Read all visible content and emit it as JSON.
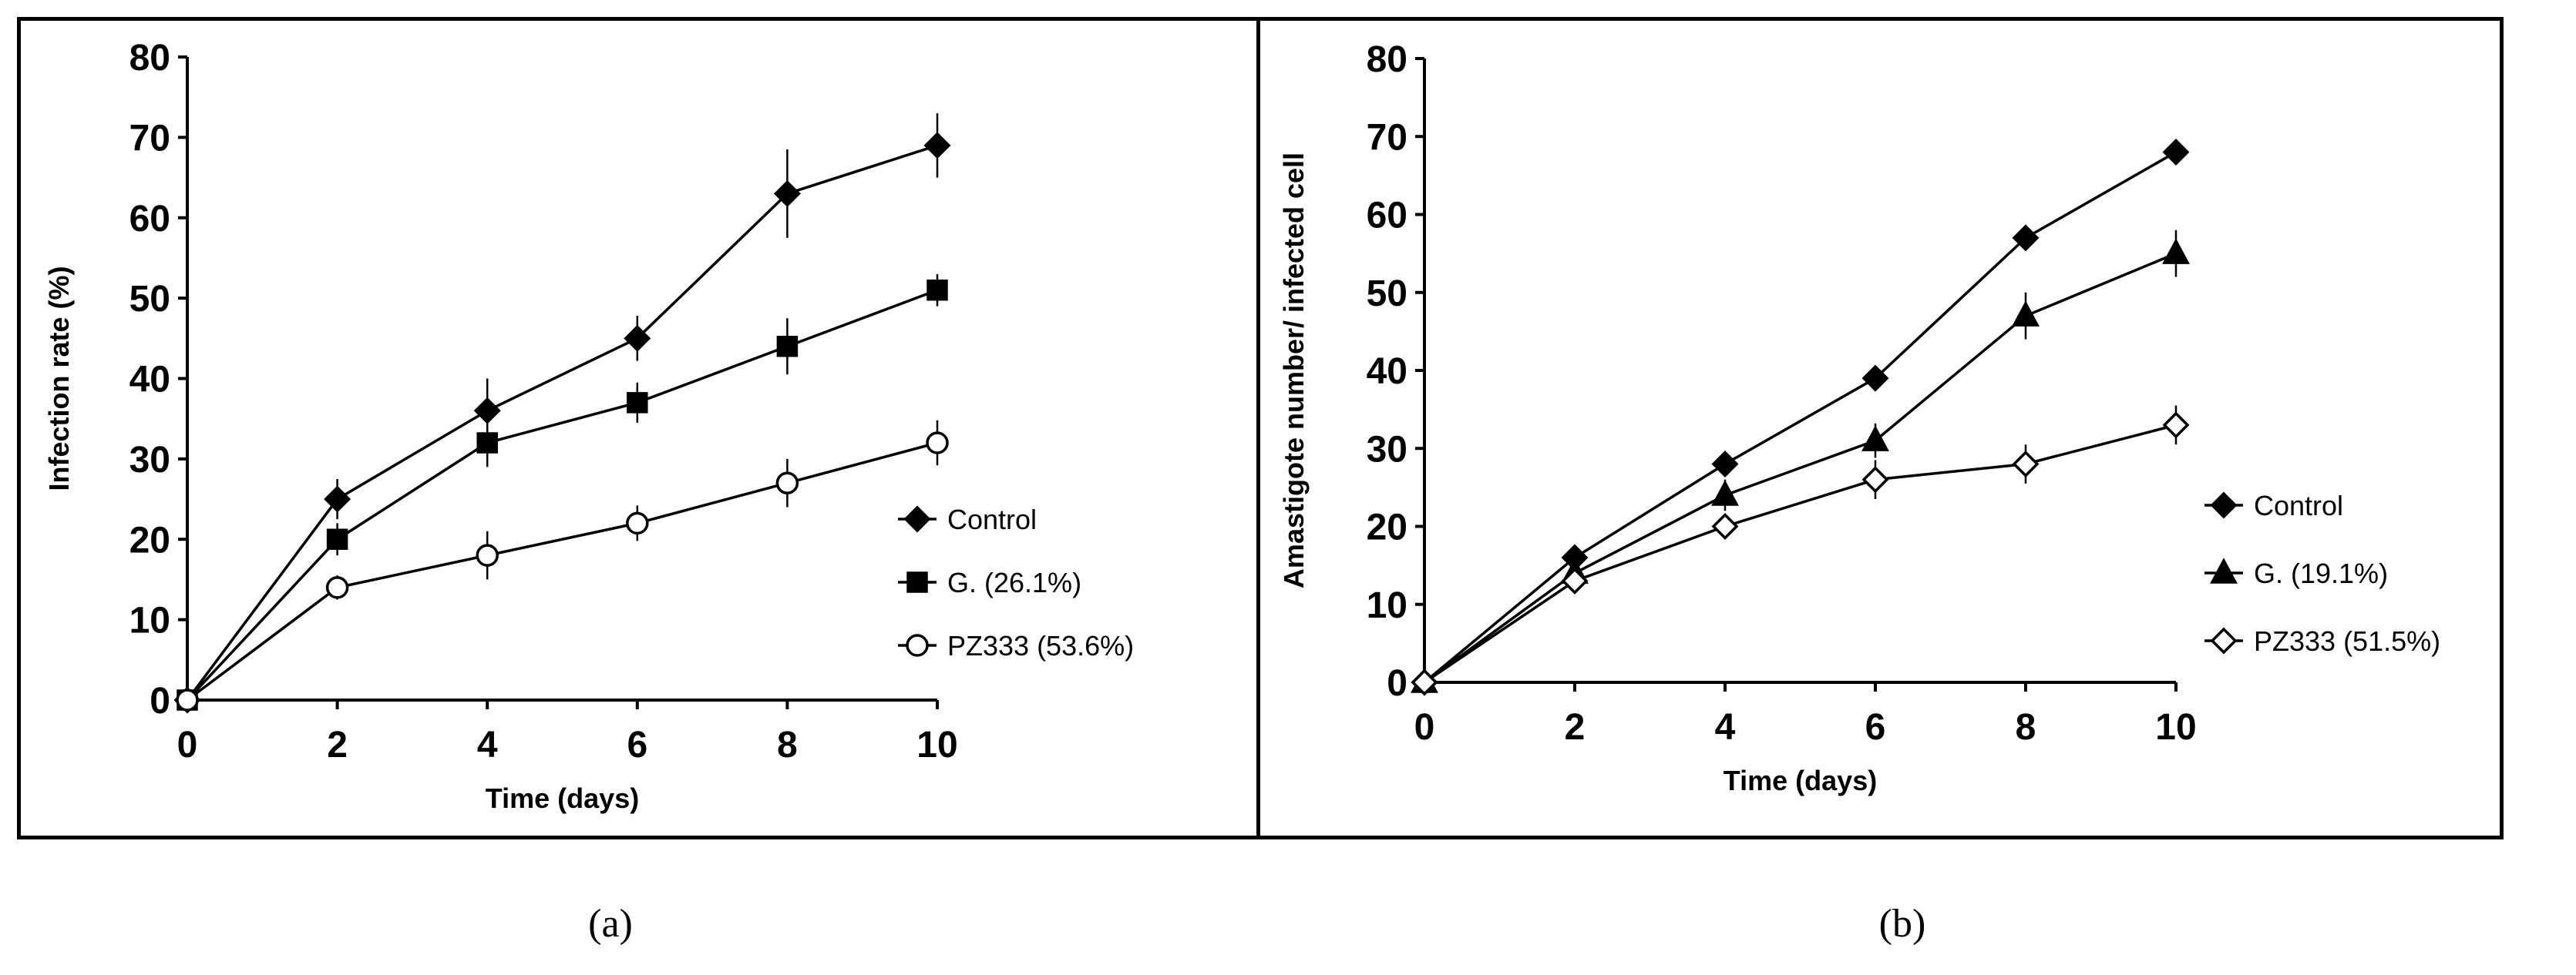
{
  "chart_data": [
    {
      "panel": "(a)",
      "type": "line",
      "title": "",
      "xlabel": "Time (days)",
      "ylabel": "Infection rate (%)",
      "xlim": [
        0,
        10
      ],
      "ylim": [
        0,
        80
      ],
      "xticks": [
        0,
        2,
        4,
        6,
        8,
        10
      ],
      "yticks": [
        0,
        10,
        20,
        30,
        40,
        50,
        60,
        70,
        80
      ],
      "x": [
        0,
        2,
        4,
        6,
        8,
        10
      ],
      "legend_position": "right",
      "series": [
        {
          "name": "Control",
          "marker": "diamond-filled",
          "values": [
            0,
            25,
            36,
            45,
            63,
            69
          ],
          "errors": [
            0,
            2.5,
            4,
            2.8,
            5.5,
            4
          ]
        },
        {
          "name": "G. (26.1%)",
          "marker": "square-filled",
          "values": [
            0,
            20,
            32,
            37,
            44,
            51
          ],
          "errors": [
            0,
            2,
            3,
            2.5,
            3.5,
            2
          ]
        },
        {
          "name": "PZ333 (53.6%)",
          "marker": "circle-open",
          "values": [
            0,
            14,
            18,
            22,
            27,
            32
          ],
          "errors": [
            0,
            1.5,
            3,
            2.2,
            3,
            2.8
          ]
        }
      ]
    },
    {
      "panel": "(b)",
      "type": "line",
      "title": "",
      "xlabel": "Time (days)",
      "ylabel": "Amastigote number/ infected cell",
      "xlim": [
        0,
        10
      ],
      "ylim": [
        0,
        80
      ],
      "xticks": [
        0,
        2,
        4,
        6,
        8,
        10
      ],
      "yticks": [
        0,
        10,
        20,
        30,
        40,
        50,
        60,
        70,
        80
      ],
      "x": [
        0,
        2,
        4,
        6,
        8,
        10
      ],
      "legend_position": "right",
      "series": [
        {
          "name": "Control",
          "marker": "diamond-filled",
          "values": [
            0,
            16,
            28,
            39,
            57,
            68
          ],
          "errors": [
            0,
            0.8,
            1,
            1,
            1,
            1
          ]
        },
        {
          "name": "G. (19.1%)",
          "marker": "triangle-filled",
          "values": [
            0,
            14,
            24,
            31,
            47,
            55
          ],
          "errors": [
            0,
            1.2,
            2,
            2.2,
            3,
            3
          ]
        },
        {
          "name": "PZ333 (51.5%)",
          "marker": "diamond-open",
          "values": [
            0,
            13,
            20,
            26,
            28,
            33
          ],
          "errors": [
            0,
            1,
            1.5,
            2.5,
            2.5,
            2.5
          ]
        }
      ]
    }
  ],
  "captions": {
    "a": "(a)",
    "b": "(b)"
  }
}
